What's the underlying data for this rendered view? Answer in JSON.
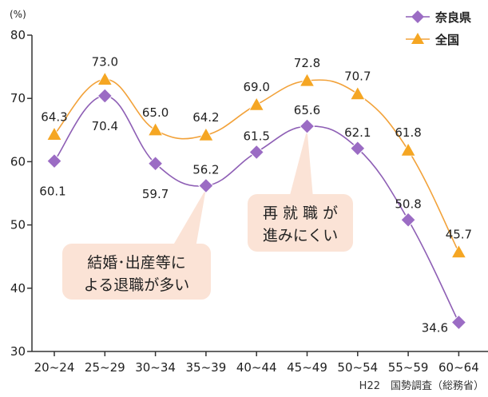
{
  "chart_data": {
    "type": "line",
    "unit": "(%)",
    "categories": [
      "20~24",
      "25~29",
      "30~34",
      "35~39",
      "40~44",
      "45~49",
      "50~54",
      "55~59",
      "60~64"
    ],
    "ylim": [
      30,
      80
    ],
    "yticks": [
      30,
      40,
      50,
      60,
      70,
      80
    ],
    "grid": false,
    "legend_position": "top-right",
    "series": [
      {
        "name": "奈良県",
        "marker": "diamond",
        "color": "#8e5fb5",
        "values": [
          60.1,
          70.4,
          59.7,
          56.2,
          61.5,
          65.6,
          62.1,
          50.8,
          34.6
        ],
        "labels": [
          "60.1",
          "70.4",
          "59.7",
          "56.2",
          "61.5",
          "65.6",
          "62.1",
          "50.8",
          "34.6"
        ]
      },
      {
        "name": "全国",
        "marker": "triangle",
        "color": "#f2a23a",
        "values": [
          64.3,
          73.0,
          65.0,
          64.2,
          69.0,
          72.8,
          70.7,
          61.8,
          45.7
        ],
        "labels": [
          "64.3",
          "73.0",
          "65.0",
          "64.2",
          "69.0",
          "72.8",
          "70.7",
          "61.8",
          "45.7"
        ]
      }
    ],
    "annotations": [
      {
        "lines": [
          "結婚･出産等に",
          "よる退職が多い"
        ],
        "points_to_category": "35~39"
      },
      {
        "lines": [
          "再 就 職 が",
          "進みにくい"
        ],
        "points_to_category": "45~49"
      }
    ],
    "source": "H22　国勢調査（総務省）"
  },
  "colors": {
    "nara": "#8e5fb5",
    "nara_marker": "#9b6cc4",
    "national": "#f2a23a",
    "national_marker": "#f5a623",
    "callout_bg": "#fbe3d6"
  }
}
